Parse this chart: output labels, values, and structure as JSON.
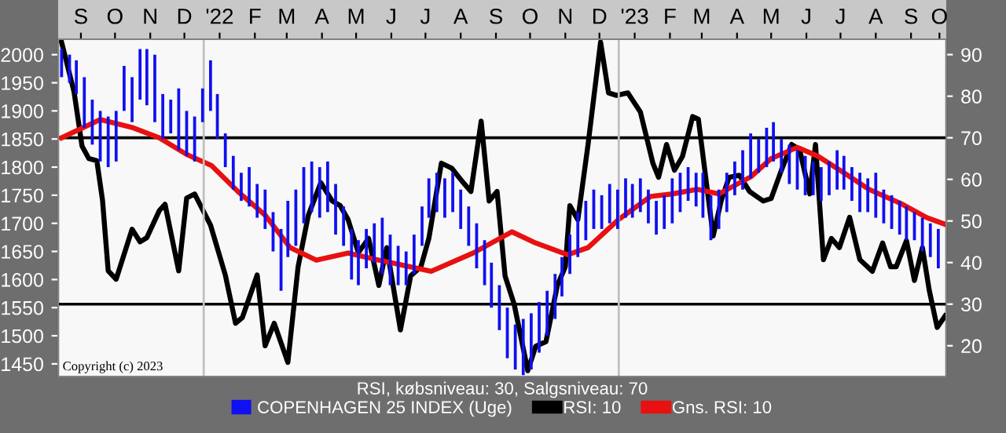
{
  "chart_data": {
    "type": "bar",
    "legend": "bottom",
    "legend_title": "RSI, købsniveau: 30, Salgsniveau: 70",
    "annotations": [
      "Copyright (c) 2023"
    ],
    "xlim": [
      "2021-08-26",
      "2023-10-16"
    ],
    "xticks": [
      {
        "value": "2021-09-15",
        "label": "S"
      },
      {
        "value": "2021-10-15",
        "label": "O"
      },
      {
        "value": "2021-11-15",
        "label": "N"
      },
      {
        "value": "2021-12-15",
        "label": "D"
      },
      {
        "value": "2022-01-15",
        "label": "'22"
      },
      {
        "value": "2022-02-15",
        "label": "F"
      },
      {
        "value": "2022-03-15",
        "label": "M"
      },
      {
        "value": "2022-04-15",
        "label": "A"
      },
      {
        "value": "2022-05-15",
        "label": "M"
      },
      {
        "value": "2022-06-15",
        "label": "J"
      },
      {
        "value": "2022-07-15",
        "label": "J"
      },
      {
        "value": "2022-08-15",
        "label": "A"
      },
      {
        "value": "2022-09-15",
        "label": "S"
      },
      {
        "value": "2022-10-15",
        "label": "O"
      },
      {
        "value": "2022-11-15",
        "label": "N"
      },
      {
        "value": "2022-12-15",
        "label": "D"
      },
      {
        "value": "2023-01-15",
        "label": "'23"
      },
      {
        "value": "2023-02-15",
        "label": "F"
      },
      {
        "value": "2023-03-15",
        "label": "M"
      },
      {
        "value": "2023-04-15",
        "label": "A"
      },
      {
        "value": "2023-05-15",
        "label": "M"
      },
      {
        "value": "2023-06-15",
        "label": "J"
      },
      {
        "value": "2023-07-15",
        "label": "J"
      },
      {
        "value": "2023-08-15",
        "label": "A"
      },
      {
        "value": "2023-09-15",
        "label": "S"
      },
      {
        "value": "2023-10-10",
        "label": "O"
      }
    ],
    "ylim": [
      1427.5,
      2027.5
    ],
    "yticks": [
      1450,
      1500,
      1550,
      1600,
      1650,
      1700,
      1750,
      1800,
      1850,
      1900,
      1950,
      2000
    ],
    "y2lim": [
      12.6,
      93.7
    ],
    "y2ticks": [
      20,
      30,
      40,
      50,
      60,
      70,
      80,
      90
    ],
    "ref_lines": [
      {
        "axis": "y2",
        "value": 70,
        "label": null,
        "color": "#000000"
      },
      {
        "axis": "y2",
        "value": 30,
        "label": null,
        "color": "#000000"
      },
      {
        "axis": "x",
        "value": "2022-01-01",
        "label": null,
        "color": "#c0c0c0"
      },
      {
        "axis": "x",
        "value": "2023-01-01",
        "label": null,
        "color": "#c0c0c0"
      }
    ],
    "series": [
      {
        "name": "COPENHAGEN 25 INDEX (Uge)",
        "color": "#1010f0",
        "x": [
          "2021-08-29",
          "2021-09-05",
          "2021-09-11",
          "2021-09-18",
          "2021-09-25",
          "2021-10-02",
          "2021-10-09",
          "2021-10-16",
          "2021-10-23",
          "2021-10-30",
          "2021-11-06",
          "2021-11-12",
          "2021-11-19",
          "2021-11-26",
          "2021-12-03",
          "2021-12-10",
          "2021-12-17",
          "2021-12-24",
          "2021-12-31",
          "2022-01-07",
          "2022-01-13",
          "2022-01-20",
          "2022-01-27",
          "2022-02-03",
          "2022-02-10",
          "2022-02-17",
          "2022-02-24",
          "2022-03-03",
          "2022-03-10",
          "2022-03-16",
          "2022-03-23",
          "2022-03-30",
          "2022-04-06",
          "2022-04-13",
          "2022-04-20",
          "2022-04-27",
          "2022-05-04",
          "2022-05-11",
          "2022-05-17",
          "2022-05-24",
          "2022-05-31",
          "2022-06-07",
          "2022-06-14",
          "2022-06-21",
          "2022-06-28",
          "2022-07-05",
          "2022-07-12",
          "2022-07-18",
          "2022-07-25",
          "2022-08-01",
          "2022-08-08",
          "2022-08-15",
          "2022-08-22",
          "2022-08-29",
          "2022-09-05",
          "2022-09-11",
          "2022-09-18",
          "2022-09-25",
          "2022-10-02",
          "2022-10-09",
          "2022-10-16",
          "2022-10-23",
          "2022-10-30",
          "2022-11-06",
          "2022-11-12",
          "2022-11-19",
          "2022-11-26",
          "2022-12-03",
          "2022-12-10",
          "2022-12-17",
          "2022-12-24",
          "2022-12-31",
          "2023-01-07",
          "2023-01-13",
          "2023-01-20",
          "2023-01-27",
          "2023-02-03",
          "2023-02-10",
          "2023-02-17",
          "2023-02-24",
          "2023-03-03",
          "2023-03-10",
          "2023-03-16",
          "2023-03-23",
          "2023-03-30",
          "2023-04-06",
          "2023-04-13",
          "2023-04-20",
          "2023-04-27",
          "2023-05-04",
          "2023-05-11",
          "2023-05-17",
          "2023-05-24",
          "2023-05-31",
          "2023-06-07",
          "2023-06-14",
          "2023-06-21",
          "2023-06-28",
          "2023-07-05",
          "2023-07-12",
          "2023-07-18",
          "2023-07-25",
          "2023-08-01",
          "2023-08-08",
          "2023-08-15",
          "2023-08-22",
          "2023-08-29",
          "2023-09-05",
          "2023-09-11",
          "2023-09-18",
          "2023-09-25",
          "2023-10-02",
          "2023-10-09"
        ],
        "base": [
          1960,
          1950,
          1930,
          1870,
          1840,
          1810,
          1800,
          1810,
          1900,
          1880,
          1920,
          1910,
          1880,
          1850,
          1860,
          1830,
          1820,
          1810,
          1880,
          1900,
          1850,
          1800,
          1760,
          1740,
          1730,
          1710,
          1690,
          1650,
          1580,
          1640,
          1660,
          1700,
          1720,
          1710,
          1720,
          1680,
          1660,
          1600,
          1590,
          1620,
          1630,
          1610,
          1590,
          1590,
          1590,
          1610,
          1660,
          1710,
          1720,
          1710,
          1720,
          1690,
          1660,
          1620,
          1590,
          1550,
          1510,
          1460,
          1440,
          1430,
          1440,
          1470,
          1500,
          1530,
          1570,
          1610,
          1640,
          1670,
          1690,
          1690,
          1700,
          1690,
          1710,
          1710,
          1720,
          1700,
          1680,
          1690,
          1700,
          1720,
          1740,
          1730,
          1710,
          1670,
          1690,
          1720,
          1750,
          1760,
          1780,
          1790,
          1800,
          1810,
          1790,
          1770,
          1760,
          1750,
          1750,
          1740,
          1750,
          1760,
          1760,
          1740,
          1720,
          1720,
          1710,
          1700,
          1690,
          1680,
          1670,
          1670,
          1650,
          1640,
          1620
        ],
        "values": [
          50,
          50,
          60,
          90,
          80,
          90,
          90,
          90,
          80,
          80,
          90,
          100,
          120,
          80,
          60,
          110,
          80,
          80,
          60,
          90,
          80,
          60,
          60,
          50,
          70,
          60,
          70,
          70,
          110,
          100,
          100,
          100,
          90,
          90,
          90,
          90,
          70,
          90,
          80,
          70,
          70,
          100,
          90,
          70,
          60,
          70,
          70,
          70,
          70,
          70,
          70,
          70,
          70,
          80,
          80,
          80,
          80,
          90,
          80,
          100,
          100,
          90,
          80,
          80,
          70,
          70,
          80,
          70,
          70,
          60,
          70,
          70,
          70,
          60,
          60,
          60,
          60,
          60,
          80,
          70,
          60,
          60,
          80,
          80,
          70,
          70,
          60,
          70,
          80,
          60,
          70,
          70,
          60,
          70,
          70,
          70,
          60,
          60,
          60,
          70,
          60,
          60,
          70,
          60,
          80,
          60,
          60,
          60,
          60,
          50,
          60,
          60,
          70
        ]
      },
      {
        "name": "RSI: 10",
        "type": "line",
        "axis": "y2",
        "color": "#000000",
        "x": [
          "2021-08-29",
          "2021-09-09",
          "2021-09-16",
          "2021-09-22",
          "2021-09-29",
          "2021-10-04",
          "2021-10-09",
          "2021-10-16",
          "2021-10-30",
          "2021-11-06",
          "2021-11-12",
          "2021-11-23",
          "2021-11-28",
          "2021-12-10",
          "2021-12-17",
          "2021-12-24",
          "2022-01-07",
          "2022-01-20",
          "2022-01-29",
          "2022-02-04",
          "2022-02-17",
          "2022-02-24",
          "2022-03-04",
          "2022-03-16",
          "2022-03-25",
          "2022-04-03",
          "2022-04-14",
          "2022-04-24",
          "2022-05-01",
          "2022-05-08",
          "2022-05-17",
          "2022-05-26",
          "2022-06-04",
          "2022-06-11",
          "2022-06-23",
          "2022-07-02",
          "2022-07-11",
          "2022-07-18",
          "2022-07-29",
          "2022-08-07",
          "2022-08-17",
          "2022-08-24",
          "2022-09-02",
          "2022-09-09",
          "2022-09-16",
          "2022-09-23",
          "2022-10-01",
          "2022-10-13",
          "2022-10-20",
          "2022-10-29",
          "2022-11-08",
          "2022-11-15",
          "2022-11-19",
          "2022-11-26",
          "2022-12-05",
          "2022-12-16",
          "2022-12-23",
          "2022-12-30",
          "2023-01-09",
          "2023-01-20",
          "2023-01-31",
          "2023-02-05",
          "2023-02-12",
          "2023-02-19",
          "2023-02-26",
          "2023-03-07",
          "2023-03-12",
          "2023-03-19",
          "2023-03-25",
          "2023-04-01",
          "2023-04-08",
          "2023-04-17",
          "2023-04-26",
          "2023-05-08",
          "2023-05-15",
          "2023-05-24",
          "2023-06-02",
          "2023-06-09",
          "2023-06-18",
          "2023-06-23",
          "2023-06-30",
          "2023-07-07",
          "2023-07-14",
          "2023-07-23",
          "2023-08-01",
          "2023-08-12",
          "2023-08-21",
          "2023-08-28",
          "2023-09-02",
          "2023-09-11",
          "2023-09-18",
          "2023-09-25",
          "2023-10-01",
          "2023-10-08",
          "2023-10-15"
        ],
        "values": [
          93,
          81,
          68,
          65,
          64.5,
          55,
          38,
          36,
          48,
          45,
          46,
          52.5,
          54,
          38,
          55.5,
          56.5,
          49,
          37,
          25.4,
          26.8,
          37,
          20,
          25.4,
          16,
          39,
          51.4,
          59.2,
          54.8,
          53.7,
          50.3,
          42.4,
          45.8,
          34.5,
          43.6,
          23.8,
          36.8,
          39,
          45.8,
          63.9,
          62.7,
          59.3,
          57.1,
          74,
          54.8,
          57.1,
          36.8,
          30,
          14,
          19.9,
          21,
          34.5,
          39,
          53.7,
          50.3,
          68.4,
          93,
          80.8,
          80.2,
          80.8,
          76.2,
          63.9,
          60.5,
          68.4,
          62.2,
          65.5,
          75.1,
          74.5,
          59.3,
          46.4,
          54.8,
          60.5,
          61,
          57.1,
          54.8,
          55.4,
          62.2,
          68.4,
          67.2,
          56.5,
          68.4,
          40.7,
          45.8,
          43.6,
          50.9,
          40.7,
          37.9,
          44.7,
          39,
          39,
          45.3,
          35.7,
          43.6,
          33.4,
          24.4,
          27.2
        ]
      },
      {
        "name": "Gns. RSI: 10",
        "type": "line",
        "axis": "y2",
        "color": "#e81010",
        "x": [
          "2021-08-29",
          "2021-10-02",
          "2021-10-31",
          "2021-11-23",
          "2021-12-17",
          "2022-01-08",
          "2022-01-31",
          "2022-02-24",
          "2022-03-18",
          "2022-04-10",
          "2022-05-08",
          "2022-06-04",
          "2022-07-20",
          "2022-08-26",
          "2022-09-29",
          "2022-10-20",
          "2022-11-17",
          "2022-12-05",
          "2023-01-01",
          "2023-01-29",
          "2023-02-17",
          "2023-03-11",
          "2023-03-30",
          "2023-04-27",
          "2023-05-15",
          "2023-06-07",
          "2023-06-25",
          "2023-07-18",
          "2023-08-09",
          "2023-09-06",
          "2023-09-29",
          "2023-10-16"
        ],
        "values": [
          70,
          74.4,
          72.4,
          70,
          66,
          63.3,
          57.1,
          51.4,
          43.6,
          40.6,
          42.3,
          40.6,
          37.9,
          42.3,
          47.4,
          44.7,
          41.9,
          43.6,
          50.4,
          55.9,
          56.5,
          57.6,
          56.5,
          60.6,
          65,
          67.7,
          65.6,
          61.6,
          57.6,
          54.2,
          50.8,
          49.1
        ]
      }
    ]
  }
}
